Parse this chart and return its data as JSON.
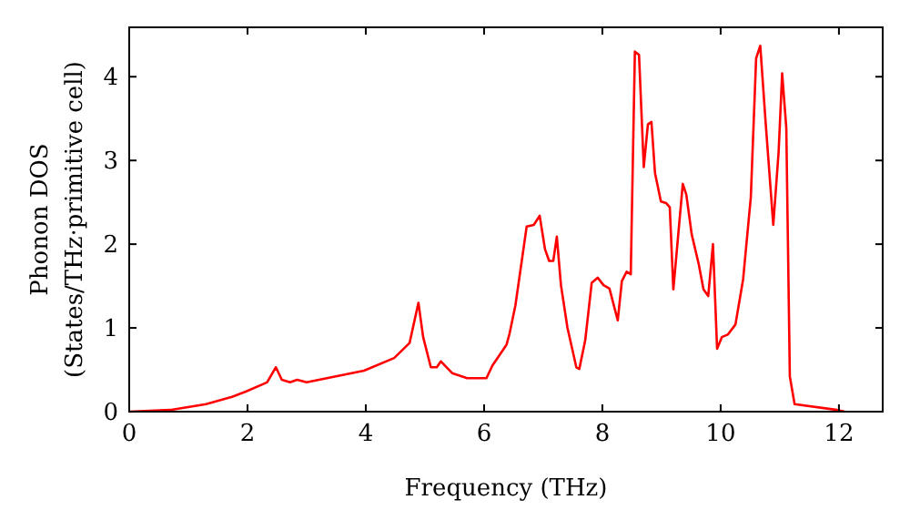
{
  "chart_data": {
    "type": "line",
    "xlabel": "Frequency (THz)",
    "ylabel": "Phonon DOS\n(States/THz·primitive cell)",
    "xlim": [
      0,
      12.74
    ],
    "ylim": [
      0,
      4.59
    ],
    "xticks": [
      0,
      2,
      4,
      6,
      8,
      10,
      12
    ],
    "yticks": [
      0,
      1,
      2,
      3,
      4
    ],
    "grid": false,
    "marker": "none",
    "line_style": "solid",
    "series": [
      {
        "color": "#ff0000",
        "x": [
          0,
          0.69,
          1.3,
          1.71,
          1.97,
          2.33,
          2.48,
          2.58,
          2.72,
          2.84,
          3.0,
          3.97,
          4.48,
          4.74,
          4.89,
          4.97,
          5.1,
          5.2,
          5.27,
          5.46,
          5.71,
          6.04,
          6.14,
          6.38,
          6.43,
          6.53,
          6.72,
          6.84,
          6.94,
          7.03,
          7.1,
          7.17,
          7.23,
          7.3,
          7.41,
          7.56,
          7.61,
          7.71,
          7.82,
          7.92,
          8.02,
          8.12,
          8.26,
          8.33,
          8.41,
          8.48,
          8.55,
          8.62,
          8.7,
          8.77,
          8.83,
          8.89,
          8.99,
          9.08,
          9.14,
          9.2,
          9.36,
          9.42,
          9.51,
          9.63,
          9.71,
          9.79,
          9.87,
          9.94,
          10.02,
          10.12,
          10.25,
          10.38,
          10.51,
          10.6,
          10.67,
          10.76,
          10.89,
          10.98,
          11.04,
          11.11,
          11.17,
          11.25,
          11.97,
          12.1
        ],
        "values": [
          0,
          0.02,
          0.09,
          0.17,
          0.24,
          0.35,
          0.53,
          0.38,
          0.35,
          0.38,
          0.35,
          0.49,
          0.64,
          0.82,
          1.3,
          0.89,
          0.53,
          0.53,
          0.6,
          0.46,
          0.4,
          0.4,
          0.55,
          0.8,
          0.93,
          1.27,
          2.21,
          2.23,
          2.34,
          1.94,
          1.8,
          1.8,
          2.09,
          1.51,
          1.0,
          0.53,
          0.51,
          0.85,
          1.54,
          1.6,
          1.51,
          1.47,
          1.09,
          1.56,
          1.67,
          1.64,
          4.3,
          4.26,
          2.92,
          3.43,
          3.46,
          2.85,
          2.51,
          2.49,
          2.44,
          1.46,
          2.72,
          2.59,
          2.12,
          1.76,
          1.46,
          1.38,
          2.0,
          0.75,
          0.89,
          0.92,
          1.04,
          1.58,
          2.56,
          4.22,
          4.37,
          3.46,
          2.23,
          3.1,
          4.04,
          3.39,
          0.42,
          0.09,
          0.02,
          0
        ]
      }
    ]
  }
}
